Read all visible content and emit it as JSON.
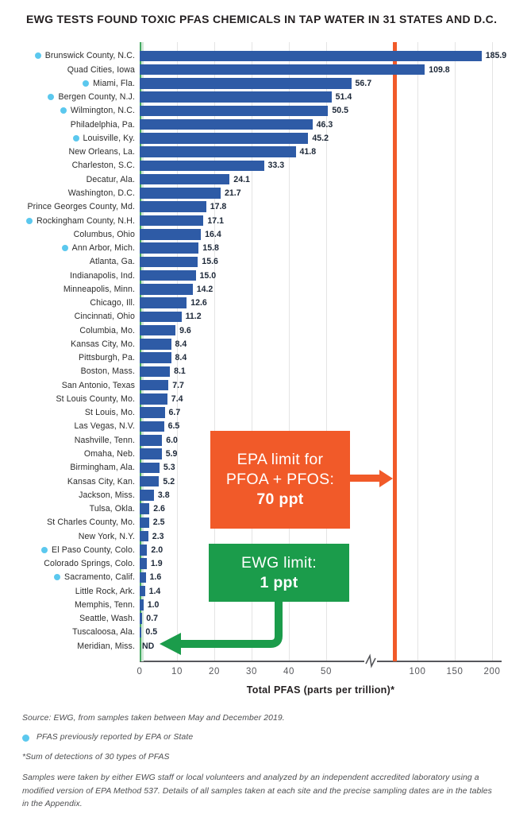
{
  "colors": {
    "bar_blue": "#2e5ba6",
    "dot_blue": "#5bc8ee",
    "epa_orange": "#f15a29",
    "ewg_green": "#1b9c4b",
    "band_green": "#d2e8d8",
    "band_edge_green": "#44a962",
    "gridline": "#e4e4e4",
    "axis_gray": "#57585c",
    "text_dark": "#231f20"
  },
  "chart_data": {
    "type": "bar",
    "title": "EWG TESTS FOUND TOXIC PFAS CHEMICALS IN TAP WATER IN 31 STATES AND D.C.",
    "xlabel": "Total PFAS (parts per trillion)*",
    "xlim": [
      0,
      200
    ],
    "axis_break_between": [
      57,
      100
    ],
    "grid": true,
    "x_ticks": [
      {
        "label": "0",
        "value": 0
      },
      {
        "label": "10",
        "value": 10
      },
      {
        "label": "20",
        "value": 20
      },
      {
        "label": "30",
        "value": 30
      },
      {
        "label": "40",
        "value": 40
      },
      {
        "label": "50",
        "value": 50
      },
      {
        "label": "100",
        "value": 100
      },
      {
        "label": "150",
        "value": 150
      },
      {
        "label": "200",
        "value": 200
      }
    ],
    "epa_limit": {
      "value": 70,
      "label_line1": "EPA limit for",
      "label_line2": "PFOA + PFOS:",
      "value_label": "70 ppt"
    },
    "ewg_limit": {
      "value": 1,
      "label_line1": "EWG limit:",
      "value_label": "1 ppt"
    },
    "rows": [
      {
        "label": "Brunswick County, N.C.",
        "value": 185.9,
        "value_label": "185.9",
        "epa_reported": true
      },
      {
        "label": "Quad Cities, Iowa",
        "value": 109.8,
        "value_label": "109.8",
        "epa_reported": false
      },
      {
        "label": "Miami, Fla.",
        "value": 56.7,
        "value_label": "56.7",
        "epa_reported": true
      },
      {
        "label": "Bergen County, N.J.",
        "value": 51.4,
        "value_label": "51.4",
        "epa_reported": true
      },
      {
        "label": "Wilmington, N.C.",
        "value": 50.5,
        "value_label": "50.5",
        "epa_reported": true
      },
      {
        "label": "Philadelphia, Pa.",
        "value": 46.3,
        "value_label": "46.3",
        "epa_reported": false
      },
      {
        "label": "Louisville, Ky.",
        "value": 45.2,
        "value_label": "45.2",
        "epa_reported": true
      },
      {
        "label": "New Orleans, La.",
        "value": 41.8,
        "value_label": "41.8",
        "epa_reported": false
      },
      {
        "label": "Charleston, S.C.",
        "value": 33.3,
        "value_label": "33.3",
        "epa_reported": false
      },
      {
        "label": "Decatur, Ala.",
        "value": 24.1,
        "value_label": "24.1",
        "epa_reported": false
      },
      {
        "label": "Washington, D.C.",
        "value": 21.7,
        "value_label": "21.7",
        "epa_reported": false
      },
      {
        "label": "Prince Georges County, Md.",
        "value": 17.8,
        "value_label": "17.8",
        "epa_reported": false
      },
      {
        "label": "Rockingham County, N.H.",
        "value": 17.1,
        "value_label": "17.1",
        "epa_reported": true
      },
      {
        "label": "Columbus, Ohio",
        "value": 16.4,
        "value_label": "16.4",
        "epa_reported": false
      },
      {
        "label": "Ann Arbor, Mich.",
        "value": 15.8,
        "value_label": "15.8",
        "epa_reported": true
      },
      {
        "label": "Atlanta, Ga.",
        "value": 15.6,
        "value_label": "15.6",
        "epa_reported": false
      },
      {
        "label": "Indianapolis, Ind.",
        "value": 15.0,
        "value_label": "15.0",
        "epa_reported": false
      },
      {
        "label": "Minneapolis, Minn.",
        "value": 14.2,
        "value_label": "14.2",
        "epa_reported": false
      },
      {
        "label": "Chicago, Ill.",
        "value": 12.6,
        "value_label": "12.6",
        "epa_reported": false
      },
      {
        "label": "Cincinnati, Ohio",
        "value": 11.2,
        "value_label": "11.2",
        "epa_reported": false
      },
      {
        "label": "Columbia, Mo.",
        "value": 9.6,
        "value_label": "9.6",
        "epa_reported": false
      },
      {
        "label": "Kansas City, Mo.",
        "value": 8.4,
        "value_label": "8.4",
        "epa_reported": false
      },
      {
        "label": "Pittsburgh, Pa.",
        "value": 8.4,
        "value_label": "8.4",
        "epa_reported": false
      },
      {
        "label": "Boston, Mass.",
        "value": 8.1,
        "value_label": "8.1",
        "epa_reported": false
      },
      {
        "label": "San Antonio, Texas",
        "value": 7.7,
        "value_label": "7.7",
        "epa_reported": false
      },
      {
        "label": "St Louis County, Mo.",
        "value": 7.4,
        "value_label": "7.4",
        "epa_reported": false
      },
      {
        "label": "St Louis, Mo.",
        "value": 6.7,
        "value_label": "6.7",
        "epa_reported": false
      },
      {
        "label": "Las Vegas, N.V.",
        "value": 6.5,
        "value_label": "6.5",
        "epa_reported": false
      },
      {
        "label": "Nashville, Tenn.",
        "value": 6.0,
        "value_label": "6.0",
        "epa_reported": false
      },
      {
        "label": "Omaha, Neb.",
        "value": 5.9,
        "value_label": "5.9",
        "epa_reported": false
      },
      {
        "label": "Birmingham, Ala.",
        "value": 5.3,
        "value_label": "5.3",
        "epa_reported": false
      },
      {
        "label": "Kansas City, Kan.",
        "value": 5.2,
        "value_label": "5.2",
        "epa_reported": false
      },
      {
        "label": "Jackson, Miss.",
        "value": 3.8,
        "value_label": "3.8",
        "epa_reported": false
      },
      {
        "label": "Tulsa, Okla.",
        "value": 2.6,
        "value_label": "2.6",
        "epa_reported": false
      },
      {
        "label": "St Charles County, Mo.",
        "value": 2.5,
        "value_label": "2.5",
        "epa_reported": false
      },
      {
        "label": "New York, N.Y.",
        "value": 2.3,
        "value_label": "2.3",
        "epa_reported": false
      },
      {
        "label": "El Paso County, Colo.",
        "value": 2.0,
        "value_label": "2.0",
        "epa_reported": true
      },
      {
        "label": "Colorado Springs, Colo.",
        "value": 1.9,
        "value_label": "1.9",
        "epa_reported": false
      },
      {
        "label": "Sacramento, Calif.",
        "value": 1.6,
        "value_label": "1.6",
        "epa_reported": true
      },
      {
        "label": "Little Rock, Ark.",
        "value": 1.4,
        "value_label": "1.4",
        "epa_reported": false
      },
      {
        "label": "Memphis, Tenn.",
        "value": 1.0,
        "value_label": "1.0",
        "epa_reported": false
      },
      {
        "label": "Seattle, Wash.",
        "value": 0.7,
        "value_label": "0.7",
        "epa_reported": false
      },
      {
        "label": "Tuscaloosa, Ala.",
        "value": 0.5,
        "value_label": "0.5",
        "epa_reported": false
      },
      {
        "label": "Meridian, Miss.",
        "value": null,
        "value_label": "ND",
        "epa_reported": false
      }
    ]
  },
  "footnotes": {
    "source": "Source: EWG, from samples taken between May and December 2019.",
    "legend_dot": "PFAS previously reported by EPA or State",
    "asterisk": "*Sum of detections of 30 types of PFAS",
    "methods": "Samples were taken by either EWG staff or local volunteers and analyzed by an independent accredited laboratory using a modified version of EPA Method 537. Details of all samples taken at each site and the precise sampling dates are in the tables in the Appendix."
  }
}
